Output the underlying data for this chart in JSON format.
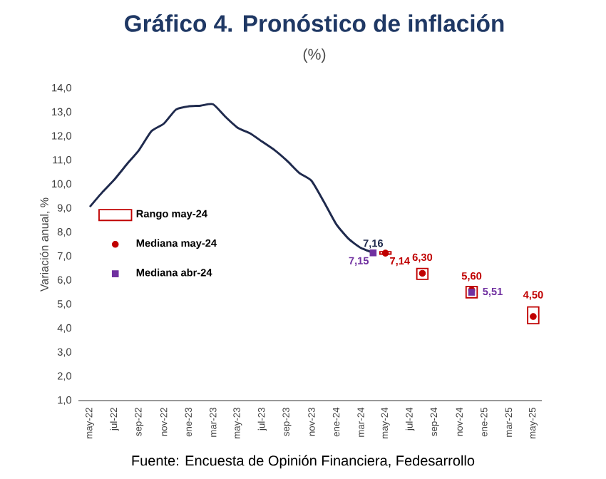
{
  "chart_data": {
    "type": "line",
    "title": "Gráfico 4. Pronóstico de inflación",
    "subtitle": "(%)",
    "ylabel": "Variación anual, %",
    "annotations": [
      "Fuente: Encuesta de Opinión Financiera, Fedesarrollo"
    ],
    "categories": [
      "may-22",
      null,
      "jul-22",
      null,
      "sep-22",
      null,
      "nov-22",
      null,
      "ene-23",
      null,
      "mar-23",
      null,
      "may-23",
      null,
      "jul-23",
      null,
      "sep-23",
      null,
      "nov-23",
      null,
      "ene-24",
      null,
      "mar-24",
      null,
      "may-24",
      null,
      "jul-24",
      null,
      "sep-24",
      null,
      "nov-24",
      null,
      "ene-25",
      null,
      "mar-25",
      null,
      "may-25"
    ],
    "ylim": [
      1,
      14
    ],
    "yticks": [
      {
        "value": 1,
        "label": "1,0"
      },
      {
        "value": 2,
        "label": "2,0"
      },
      {
        "value": 3,
        "label": "3,0"
      },
      {
        "value": 4,
        "label": "4,0"
      },
      {
        "value": 5,
        "label": "5,0"
      },
      {
        "value": 6,
        "label": "6,0"
      },
      {
        "value": 7,
        "label": "7,0"
      },
      {
        "value": 8,
        "label": "8,0"
      },
      {
        "value": 9,
        "label": "9,0"
      },
      {
        "value": 10,
        "label": "10,0"
      },
      {
        "value": 11,
        "label": "11,0"
      },
      {
        "value": 12,
        "label": "12,0"
      },
      {
        "value": 13,
        "label": "13,0"
      },
      {
        "value": 14,
        "label": "14,0"
      }
    ],
    "grid": false,
    "legend": "left",
    "series": [
      {
        "color": "#1f2a4d",
        "marker": "none",
        "values": [
          9.07,
          9.67,
          10.21,
          10.84,
          11.44,
          12.22,
          12.53,
          13.12,
          13.25,
          13.28,
          13.34,
          12.82,
          12.36,
          12.13,
          11.78,
          11.43,
          10.99,
          10.48,
          10.15,
          9.28,
          8.35,
          7.74,
          7.36,
          7.16,
          null,
          null,
          null,
          null,
          null,
          null,
          null,
          null,
          null,
          null,
          null,
          null,
          null
        ],
        "value_labels": [
          null,
          null,
          null,
          null,
          null,
          null,
          null,
          null,
          null,
          null,
          null,
          null,
          null,
          null,
          null,
          null,
          null,
          null,
          null,
          null,
          null,
          null,
          null,
          "7,16",
          null,
          null,
          null,
          null,
          null,
          null,
          null,
          null,
          null,
          null,
          null,
          null,
          null
        ]
      },
      {
        "type": "bar",
        "name": "Rango may-24",
        "color": "#c00000",
        "base": [
          null,
          null,
          null,
          null,
          null,
          null,
          null,
          null,
          null,
          null,
          null,
          null,
          null,
          null,
          null,
          null,
          null,
          null,
          null,
          null,
          null,
          null,
          null,
          null,
          7.1,
          null,
          null,
          6.05,
          null,
          null,
          null,
          5.28,
          null,
          null,
          null,
          null,
          4.2
        ],
        "values": [
          null,
          null,
          null,
          null,
          null,
          null,
          null,
          null,
          null,
          null,
          null,
          null,
          null,
          null,
          null,
          null,
          null,
          null,
          null,
          null,
          null,
          null,
          null,
          null,
          0.1,
          null,
          null,
          0.45,
          null,
          null,
          null,
          0.47,
          null,
          null,
          null,
          null,
          0.7
        ]
      },
      {
        "type": "scatter",
        "name": "Mediana may-24",
        "color": "#c00000",
        "marker": "circle",
        "values": [
          null,
          null,
          null,
          null,
          null,
          null,
          null,
          null,
          null,
          null,
          null,
          null,
          null,
          null,
          null,
          null,
          null,
          null,
          null,
          null,
          null,
          null,
          null,
          null,
          7.14,
          null,
          null,
          6.3,
          null,
          null,
          null,
          5.6,
          null,
          null,
          null,
          null,
          4.5
        ],
        "value_labels": [
          null,
          null,
          null,
          null,
          null,
          null,
          null,
          null,
          null,
          null,
          null,
          null,
          null,
          null,
          null,
          null,
          null,
          null,
          null,
          null,
          null,
          null,
          null,
          null,
          "7,14",
          null,
          null,
          "6,30",
          null,
          null,
          null,
          "5,60",
          null,
          null,
          null,
          null,
          "4,50"
        ]
      },
      {
        "type": "scatter",
        "name": "Mediana abr-24",
        "color": "#7030a0",
        "marker": "square",
        "values": [
          null,
          null,
          null,
          null,
          null,
          null,
          null,
          null,
          null,
          null,
          null,
          null,
          null,
          null,
          null,
          null,
          null,
          null,
          null,
          null,
          null,
          null,
          null,
          7.15,
          null,
          null,
          null,
          null,
          null,
          null,
          null,
          5.51,
          null,
          null,
          null,
          null,
          null
        ],
        "value_labels": [
          null,
          null,
          null,
          null,
          null,
          null,
          null,
          null,
          null,
          null,
          null,
          null,
          null,
          null,
          null,
          null,
          null,
          null,
          null,
          null,
          null,
          null,
          null,
          "7,15",
          null,
          null,
          null,
          null,
          null,
          null,
          null,
          "5,51",
          null,
          null,
          null,
          null,
          null
        ]
      }
    ]
  }
}
